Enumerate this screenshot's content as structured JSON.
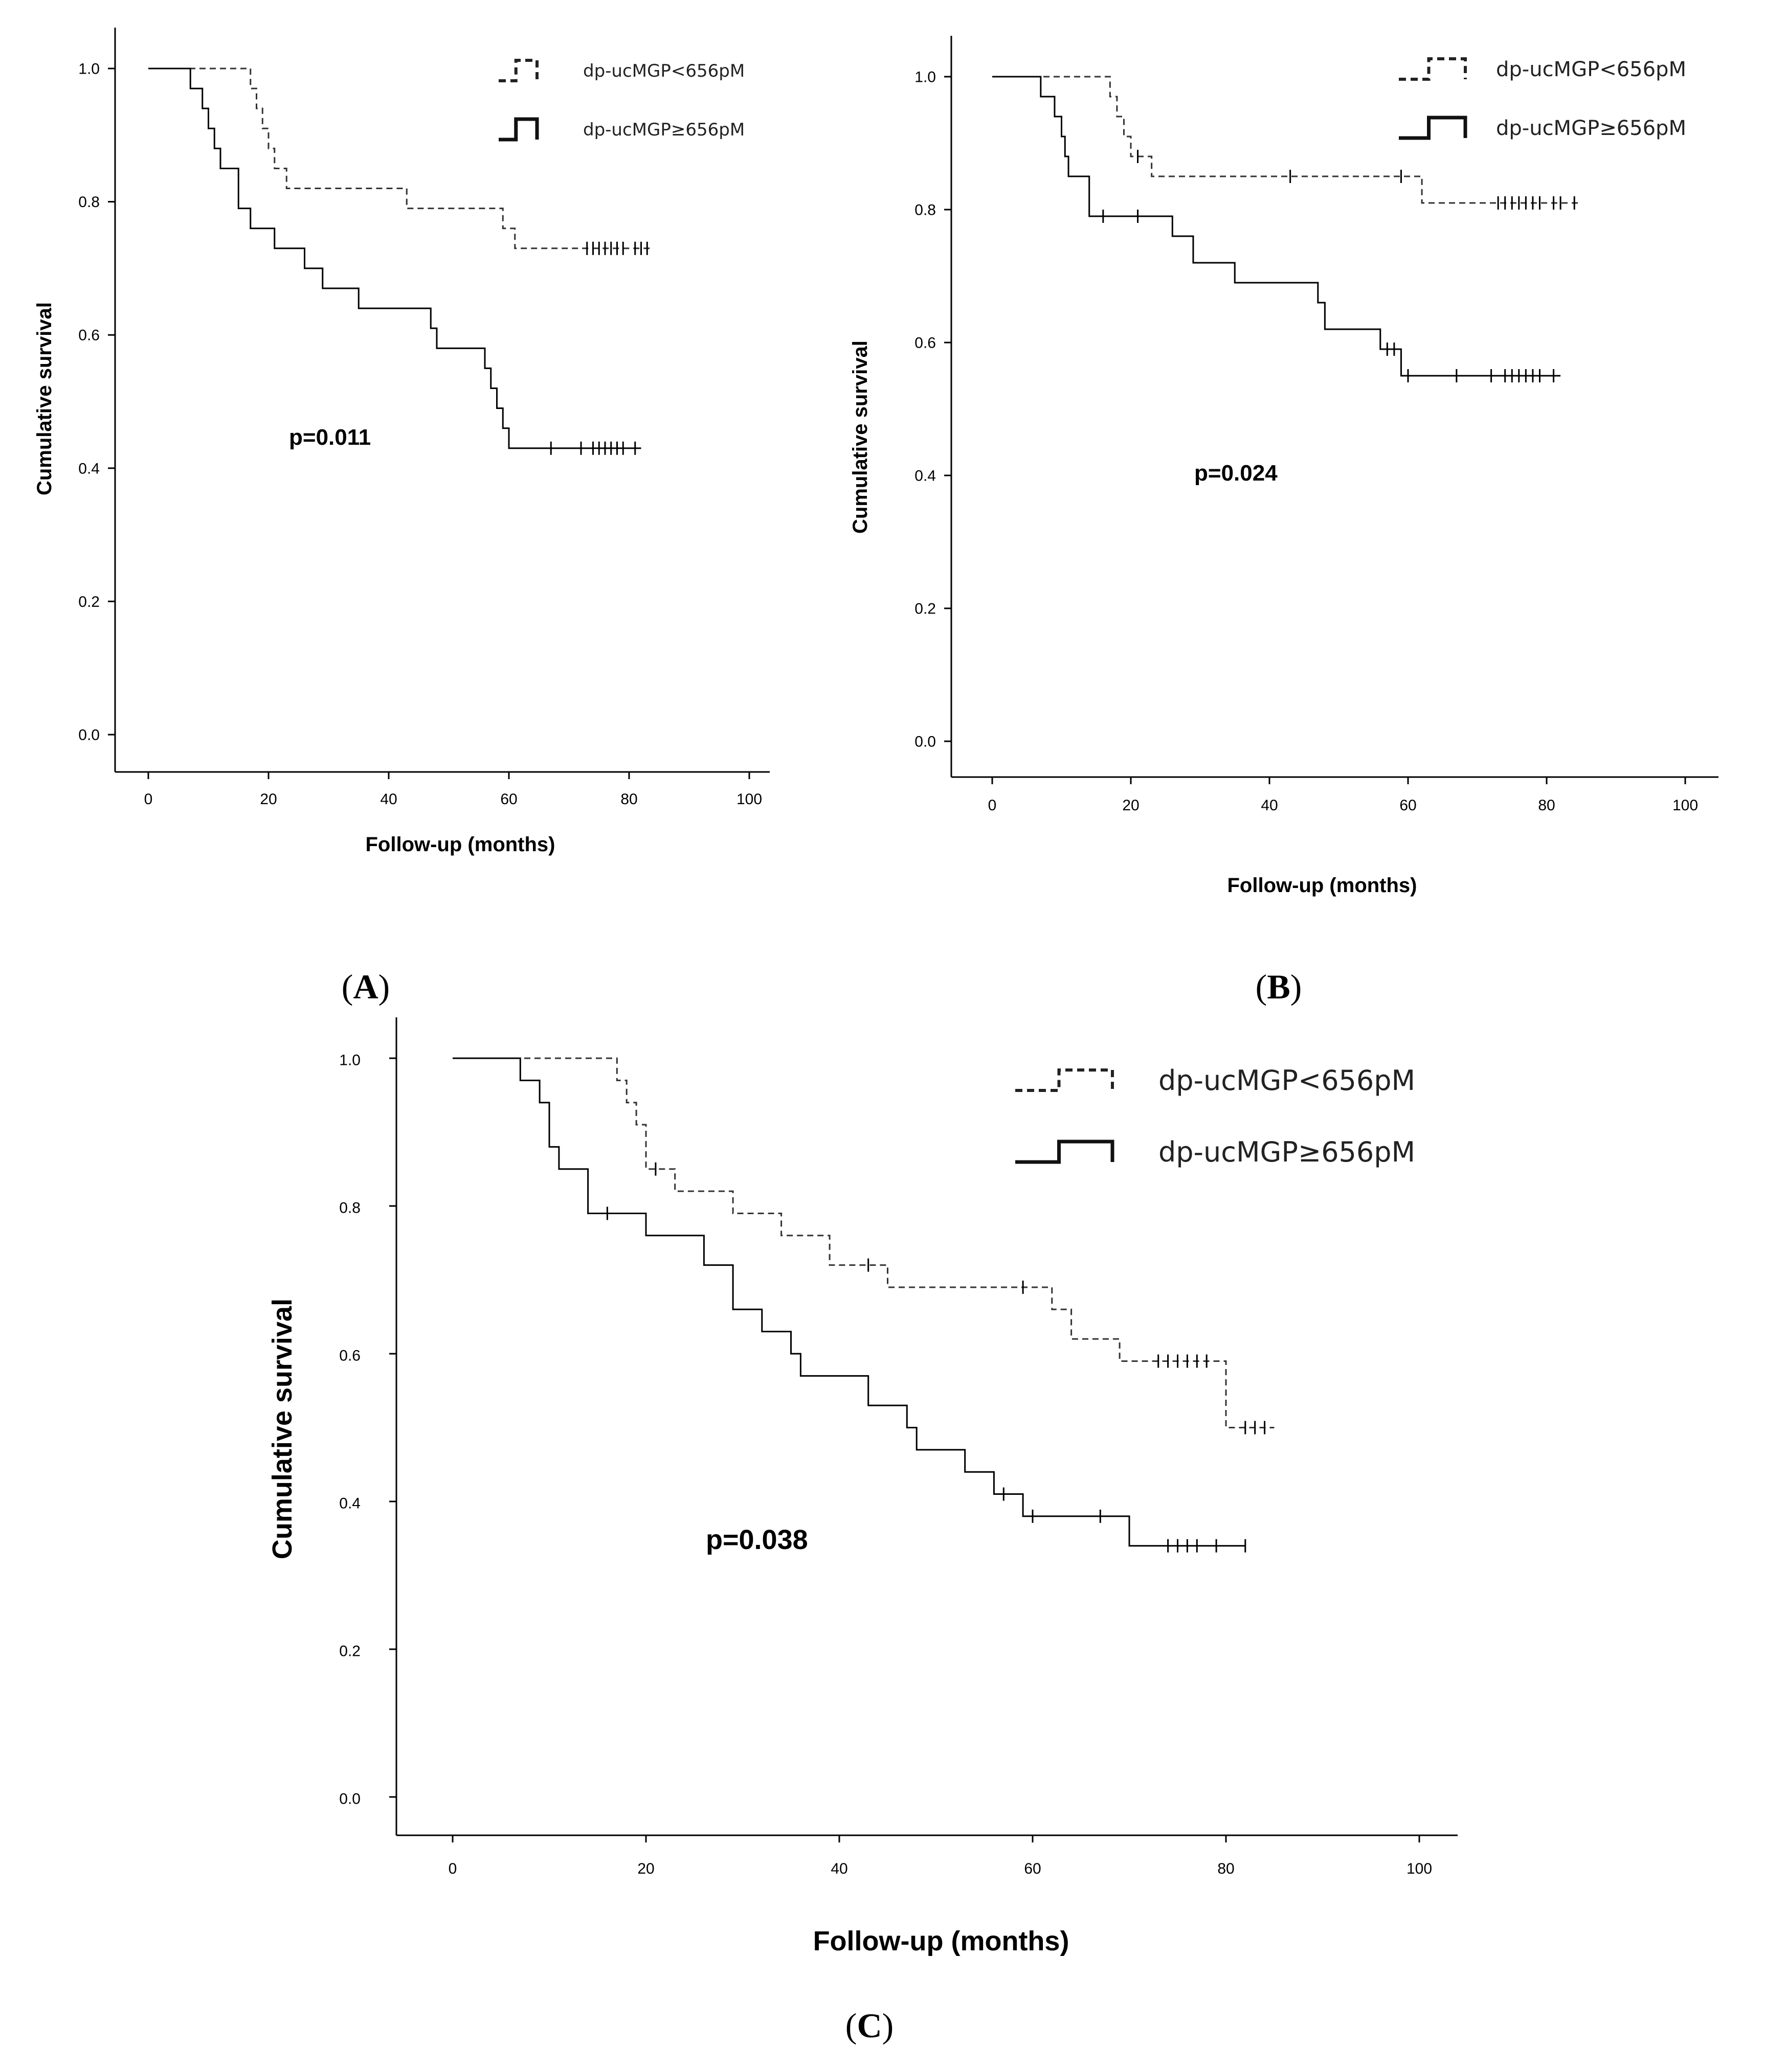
{
  "chart_data": [
    {
      "type": "line",
      "panel": "A",
      "title": "",
      "xlabel": "Follow-up (months)",
      "ylabel": "Cumulative survival",
      "xlim": [
        0,
        100
      ],
      "ylim": [
        0,
        1
      ],
      "xticks": [
        "0",
        "20",
        "40",
        "60",
        "80",
        "100"
      ],
      "yticks": [
        "0.0",
        "0.2",
        "0.4",
        "0.6",
        "0.8",
        "1.0"
      ],
      "p_value": "p=0.011",
      "panel_label": "A",
      "legend": [
        {
          "label": "dp-ucMGP<656pM",
          "style": "dashed"
        },
        {
          "label": "dp-ucMGP≥656pM",
          "style": "solid"
        }
      ],
      "series": [
        {
          "name": "dp-ucMGP<656pM",
          "style": "dashed",
          "steps": [
            [
              0,
              1.0
            ],
            [
              17,
              0.97
            ],
            [
              18,
              0.94
            ],
            [
              19,
              0.91
            ],
            [
              20,
              0.88
            ],
            [
              21,
              0.85
            ],
            [
              23,
              0.82
            ],
            [
              43,
              0.79
            ],
            [
              59,
              0.76
            ],
            [
              61,
              0.73
            ]
          ],
          "end": 84,
          "censored": [
            [
              73,
              0.73
            ],
            [
              74,
              0.73
            ],
            [
              75,
              0.73
            ],
            [
              76,
              0.73
            ],
            [
              77,
              0.73
            ],
            [
              78,
              0.73
            ],
            [
              79,
              0.73
            ],
            [
              81,
              0.73
            ],
            [
              82,
              0.73
            ],
            [
              83,
              0.73
            ]
          ]
        },
        {
          "name": "dp-ucMGP≥656pM",
          "style": "solid",
          "steps": [
            [
              0,
              1.0
            ],
            [
              7,
              0.97
            ],
            [
              9,
              0.94
            ],
            [
              10,
              0.91
            ],
            [
              11,
              0.88
            ],
            [
              12,
              0.85
            ],
            [
              15,
              0.79
            ],
            [
              17,
              0.76
            ],
            [
              21,
              0.73
            ],
            [
              26,
              0.7
            ],
            [
              29,
              0.67
            ],
            [
              35,
              0.64
            ],
            [
              47,
              0.61
            ],
            [
              48,
              0.58
            ],
            [
              56,
              0.55
            ],
            [
              57,
              0.52
            ],
            [
              58,
              0.49
            ],
            [
              59,
              0.46
            ],
            [
              60,
              0.43
            ]
          ],
          "end": 82,
          "censored": [
            [
              67,
              0.43
            ],
            [
              72,
              0.43
            ],
            [
              74,
              0.43
            ],
            [
              75,
              0.43
            ],
            [
              76,
              0.43
            ],
            [
              77,
              0.43
            ],
            [
              78,
              0.43
            ],
            [
              79,
              0.43
            ],
            [
              81,
              0.43
            ]
          ]
        }
      ]
    },
    {
      "type": "line",
      "panel": "B",
      "title": "",
      "xlabel": "Follow-up (months)",
      "ylabel": "Cumulative survival",
      "xlim": [
        0,
        100
      ],
      "ylim": [
        0,
        1
      ],
      "xticks": [
        "0",
        "20",
        "40",
        "60",
        "80",
        "100"
      ],
      "yticks": [
        "0.0",
        "0.2",
        "0.4",
        "0.6",
        "0.8",
        "1.0"
      ],
      "p_value": "p=0.024",
      "panel_label": "B",
      "legend": [
        {
          "label": "dp-ucMGP<656pM",
          "style": "dashed"
        },
        {
          "label": "dp-ucMGP≥656pM",
          "style": "solid"
        }
      ],
      "series": [
        {
          "name": "dp-ucMGP<656pM",
          "style": "dashed",
          "steps": [
            [
              0,
              1.0
            ],
            [
              17,
              0.97
            ],
            [
              18,
              0.94
            ],
            [
              19,
              0.91
            ],
            [
              20,
              0.88
            ],
            [
              23,
              0.85
            ],
            [
              62,
              0.81
            ]
          ],
          "end": 85,
          "censored": [
            [
              21,
              0.88
            ],
            [
              43,
              0.85
            ],
            [
              59,
              0.85
            ],
            [
              73,
              0.81
            ],
            [
              74,
              0.81
            ],
            [
              75,
              0.81
            ],
            [
              76,
              0.81
            ],
            [
              77,
              0.81
            ],
            [
              78,
              0.81
            ],
            [
              79,
              0.81
            ],
            [
              81,
              0.81
            ],
            [
              82,
              0.81
            ],
            [
              84,
              0.81
            ]
          ]
        },
        {
          "name": "dp-ucMGP≥656pM",
          "style": "solid",
          "steps": [
            [
              0,
              1.0
            ],
            [
              7,
              0.97
            ],
            [
              9,
              0.94
            ],
            [
              10,
              0.91
            ],
            [
              10.5,
              0.88
            ],
            [
              11,
              0.85
            ],
            [
              14,
              0.79
            ],
            [
              26,
              0.76
            ],
            [
              29,
              0.72
            ],
            [
              35,
              0.69
            ],
            [
              47,
              0.66
            ],
            [
              48,
              0.62
            ],
            [
              56,
              0.59
            ],
            [
              59,
              0.55
            ]
          ],
          "end": 82,
          "censored": [
            [
              16,
              0.79
            ],
            [
              21,
              0.79
            ],
            [
              57,
              0.59
            ],
            [
              58,
              0.59
            ],
            [
              60,
              0.55
            ],
            [
              67,
              0.55
            ],
            [
              72,
              0.55
            ],
            [
              74,
              0.55
            ],
            [
              75,
              0.55
            ],
            [
              76,
              0.55
            ],
            [
              77,
              0.55
            ],
            [
              78,
              0.55
            ],
            [
              79,
              0.55
            ],
            [
              81,
              0.55
            ]
          ]
        }
      ]
    },
    {
      "type": "line",
      "panel": "C",
      "title": "",
      "xlabel": "Follow-up (months)",
      "ylabel": "Cumulative survival",
      "xlim": [
        0,
        100
      ],
      "ylim": [
        0,
        1
      ],
      "xticks": [
        "0",
        "20",
        "40",
        "60",
        "80",
        "100"
      ],
      "yticks": [
        "0.0",
        "0.2",
        "0.4",
        "0.6",
        "0.8",
        "1.0"
      ],
      "p_value": "p=0.038",
      "panel_label": "C",
      "legend": [
        {
          "label": "dp-ucMGP<656pM",
          "style": "dashed"
        },
        {
          "label": "dp-ucMGP≥656pM",
          "style": "solid"
        }
      ],
      "series": [
        {
          "name": "dp-ucMGP<656pM",
          "style": "dashed",
          "steps": [
            [
              0,
              1.0
            ],
            [
              17,
              0.97
            ],
            [
              18,
              0.94
            ],
            [
              19,
              0.91
            ],
            [
              20,
              0.85
            ],
            [
              23,
              0.82
            ],
            [
              29,
              0.79
            ],
            [
              34,
              0.76
            ],
            [
              39,
              0.72
            ],
            [
              45,
              0.69
            ],
            [
              62,
              0.66
            ],
            [
              64,
              0.62
            ],
            [
              69,
              0.59
            ],
            [
              80,
              0.5
            ]
          ],
          "end": 85,
          "censored": [
            [
              21,
              0.85
            ],
            [
              43,
              0.72
            ],
            [
              59,
              0.69
            ],
            [
              73,
              0.59
            ],
            [
              74,
              0.59
            ],
            [
              75,
              0.59
            ],
            [
              76,
              0.59
            ],
            [
              77,
              0.59
            ],
            [
              78,
              0.59
            ],
            [
              82,
              0.5
            ],
            [
              83,
              0.5
            ],
            [
              84,
              0.5
            ]
          ]
        },
        {
          "name": "dp-ucMGP≥656pM",
          "style": "solid",
          "steps": [
            [
              0,
              1.0
            ],
            [
              7,
              0.97
            ],
            [
              9,
              0.94
            ],
            [
              10,
              0.88
            ],
            [
              11,
              0.85
            ],
            [
              14,
              0.79
            ],
            [
              20,
              0.76
            ],
            [
              26,
              0.72
            ],
            [
              29,
              0.66
            ],
            [
              32,
              0.63
            ],
            [
              35,
              0.6
            ],
            [
              36,
              0.57
            ],
            [
              43,
              0.53
            ],
            [
              47,
              0.5
            ],
            [
              48,
              0.47
            ],
            [
              53,
              0.44
            ],
            [
              56,
              0.41
            ],
            [
              59,
              0.38
            ],
            [
              70,
              0.34
            ]
          ],
          "end": 82,
          "censored": [
            [
              16,
              0.79
            ],
            [
              57,
              0.41
            ],
            [
              60,
              0.38
            ],
            [
              67,
              0.38
            ],
            [
              74,
              0.34
            ],
            [
              75,
              0.34
            ],
            [
              76,
              0.34
            ],
            [
              77,
              0.34
            ],
            [
              79,
              0.34
            ],
            [
              82,
              0.34
            ]
          ]
        }
      ]
    }
  ]
}
